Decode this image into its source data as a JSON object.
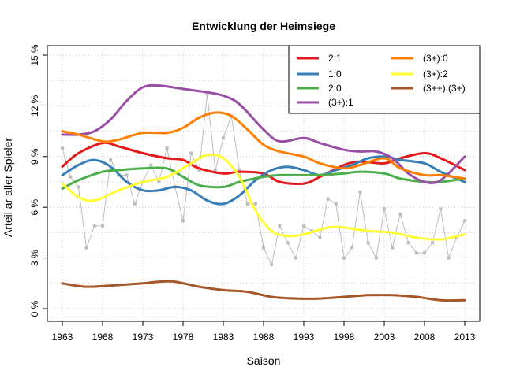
{
  "chart_data": {
    "type": "line",
    "title": "Entwicklung der Heimsiege",
    "xlabel": "Saison",
    "ylabel": "Arteil ar aller Spieler",
    "xlim": [
      1963,
      2013
    ],
    "ylim": [
      0,
      15
    ],
    "x_ticks": [
      1963,
      1968,
      1973,
      1978,
      1983,
      1988,
      1993,
      1998,
      2003,
      2008,
      2013
    ],
    "y_ticks": [
      0,
      3,
      6,
      9,
      12,
      15
    ],
    "y_tick_labels": [
      "0 %",
      "3 %",
      "6 %",
      "9 %",
      "12 %",
      "15 %"
    ],
    "grid": true,
    "legend_position": "top-right",
    "series": [
      {
        "name": "2:1",
        "color": "#e41a1c",
        "x": [
          1963,
          1965,
          1968,
          1970,
          1973,
          1976,
          1978,
          1980,
          1983,
          1985,
          1988,
          1990,
          1993,
          1995,
          1998,
          2000,
          2003,
          2005,
          2008,
          2010,
          2013
        ],
        "values": [
          8.4,
          9.2,
          9.8,
          9.6,
          9.2,
          8.9,
          8.8,
          8.3,
          8.0,
          8.1,
          8.0,
          7.5,
          7.4,
          7.8,
          8.5,
          8.7,
          8.6,
          8.9,
          9.2,
          8.9,
          8.2
        ]
      },
      {
        "name": "1:0",
        "color": "#377eb8",
        "x": [
          1963,
          1965,
          1967,
          1969,
          1971,
          1973,
          1975,
          1977,
          1979,
          1981,
          1983,
          1985,
          1987,
          1989,
          1991,
          1993,
          1995,
          1997,
          1999,
          2001,
          2003,
          2005,
          2008,
          2010,
          2013
        ],
        "values": [
          7.9,
          8.5,
          8.8,
          8.4,
          7.5,
          7.0,
          7.0,
          7.2,
          7.0,
          6.4,
          6.2,
          6.7,
          7.6,
          8.2,
          8.4,
          8.2,
          7.9,
          8.2,
          8.5,
          8.9,
          9.0,
          8.8,
          8.6,
          8.1,
          7.5
        ]
      },
      {
        "name": "2:0",
        "color": "#4daf4a",
        "x": [
          1963,
          1965,
          1968,
          1970,
          1973,
          1976,
          1978,
          1980,
          1983,
          1985,
          1988,
          1990,
          1993,
          1995,
          1998,
          2000,
          2003,
          2005,
          2008,
          2010,
          2013
        ],
        "values": [
          7.1,
          7.6,
          8.1,
          8.2,
          8.3,
          8.3,
          7.8,
          7.3,
          7.2,
          7.5,
          7.8,
          7.9,
          7.9,
          7.9,
          8.0,
          8.1,
          8.0,
          7.7,
          7.5,
          7.5,
          7.7
        ]
      },
      {
        "name": "(3+):1",
        "color": "#984ea3",
        "x": [
          1963,
          1965,
          1967,
          1969,
          1971,
          1973,
          1975,
          1978,
          1981,
          1983,
          1985,
          1988,
          1990,
          1993,
          1995,
          1998,
          2000,
          2002,
          2004,
          2006,
          2008,
          2010,
          2013
        ],
        "values": [
          10.3,
          10.3,
          10.5,
          11.2,
          12.3,
          13.1,
          13.2,
          13.0,
          12.8,
          12.6,
          12.1,
          10.6,
          9.9,
          10.1,
          9.8,
          9.4,
          9.3,
          9.3,
          8.9,
          8.0,
          7.5,
          7.6,
          9.0
        ]
      },
      {
        "name": "(3+):0",
        "color": "#ff7f00",
        "x": [
          1963,
          1965,
          1968,
          1970,
          1973,
          1976,
          1978,
          1980,
          1982,
          1984,
          1986,
          1988,
          1990,
          1993,
          1995,
          1998,
          2000,
          2003,
          2005,
          2008,
          2010,
          2013
        ],
        "values": [
          10.5,
          10.3,
          9.9,
          10.0,
          10.4,
          10.4,
          10.7,
          11.3,
          11.6,
          11.4,
          10.6,
          9.7,
          9.3,
          9.0,
          8.6,
          8.3,
          8.5,
          8.9,
          8.3,
          7.9,
          7.9,
          7.7
        ]
      },
      {
        "name": "(3+):2",
        "color": "#ffff33",
        "x": [
          1963,
          1965,
          1967,
          1970,
          1973,
          1976,
          1979,
          1981,
          1983,
          1985,
          1987,
          1989,
          1991,
          1993,
          1996,
          1998,
          2001,
          2004,
          2007,
          2010,
          2013
        ],
        "values": [
          7.4,
          6.6,
          6.4,
          7.0,
          7.5,
          7.8,
          8.6,
          9.1,
          8.9,
          7.8,
          5.8,
          4.6,
          4.3,
          4.4,
          4.8,
          4.8,
          4.6,
          4.5,
          4.2,
          4.1,
          4.4
        ]
      },
      {
        "name": "(3++):(3+)",
        "color": "#a65628",
        "x": [
          1963,
          1966,
          1970,
          1973,
          1975,
          1977,
          1980,
          1983,
          1986,
          1989,
          1992,
          1995,
          1998,
          2001,
          2004,
          2007,
          2010,
          2013
        ],
        "values": [
          1.5,
          1.3,
          1.4,
          1.5,
          1.6,
          1.6,
          1.3,
          1.1,
          1.0,
          0.7,
          0.6,
          0.6,
          0.7,
          0.8,
          0.8,
          0.7,
          0.5,
          0.5
        ]
      }
    ],
    "raw_series": {
      "color": "#bdbdbd",
      "x": [
        1963,
        1964,
        1965,
        1966,
        1967,
        1968,
        1969,
        1970,
        1971,
        1972,
        1973,
        1974,
        1975,
        1976,
        1977,
        1978,
        1979,
        1980,
        1981,
        1982,
        1983,
        1984,
        1985,
        1986,
        1987,
        1988,
        1989,
        1990,
        1991,
        1992,
        1993,
        1994,
        1995,
        1996,
        1997,
        1998,
        1999,
        2000,
        2001,
        2002,
        2003,
        2004,
        2005,
        2006,
        2007,
        2008,
        2009,
        2010,
        2011,
        2012,
        2013
      ],
      "values": [
        9.5,
        7.8,
        7.2,
        3.6,
        4.9,
        4.9,
        8.8,
        7.9,
        7.9,
        6.2,
        7.5,
        8.5,
        7.5,
        9.5,
        7.2,
        5.2,
        9.2,
        8.2,
        12.7,
        8.2,
        10.1,
        11.4,
        8.2,
        6.2,
        6.2,
        3.6,
        2.6,
        4.9,
        3.9,
        3.0,
        4.9,
        4.6,
        4.2,
        6.5,
        6.2,
        3.0,
        3.6,
        6.9,
        3.9,
        3.0,
        5.9,
        3.6,
        5.6,
        3.9,
        3.3,
        3.3,
        3.9,
        5.9,
        3.0,
        4.2,
        5.2
      ]
    }
  }
}
